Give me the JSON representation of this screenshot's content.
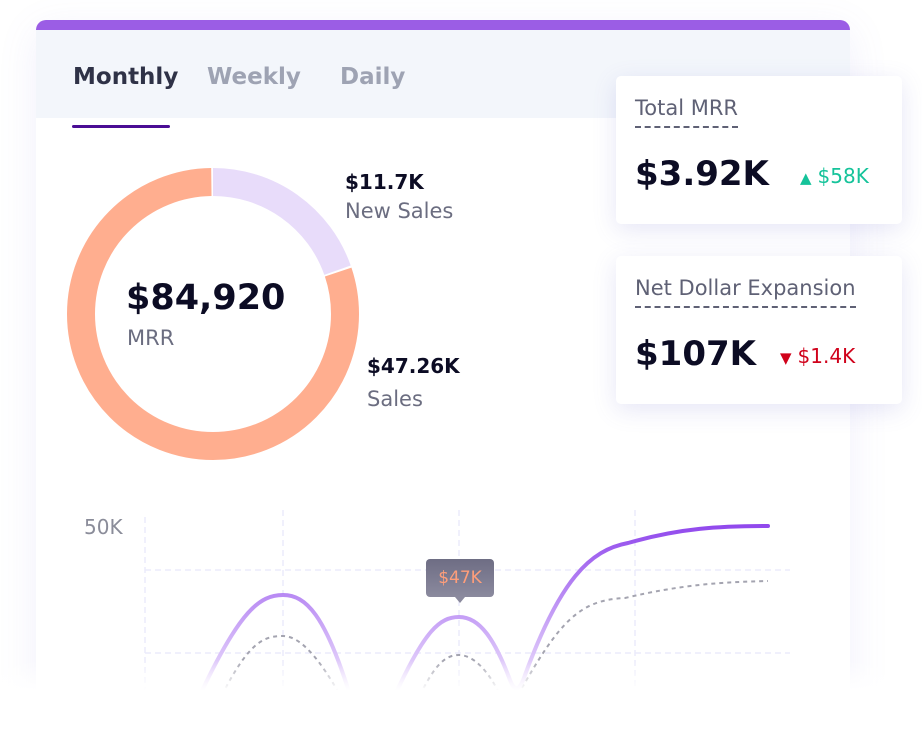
{
  "tabs": [
    {
      "label": "Monthly",
      "active": true
    },
    {
      "label": "Weekly",
      "active": false
    },
    {
      "label": "Daily",
      "active": false
    }
  ],
  "donut": {
    "center_value": "$84,920",
    "center_label": "MRR",
    "segments": [
      {
        "value_label": "$11.7K",
        "label": "New Sales",
        "value": 11.7,
        "color": "#e8dcfa"
      },
      {
        "value_label": "$47.26K",
        "label": "Sales",
        "value": 47.26,
        "color": "#ffae8f"
      }
    ]
  },
  "chart": {
    "y_tick": "50K",
    "tooltip": "$47K",
    "line_color": "#8e44ec",
    "secondary_color": "#a4a4b0"
  },
  "stats": [
    {
      "title": "Total MRR",
      "value": "$3.92K",
      "delta": "$58K",
      "direction": "up",
      "color": "#15c39a"
    },
    {
      "title": "Net Dollar Expansion",
      "value": "$107K",
      "delta": "$1.4K",
      "direction": "down",
      "color": "#d0021b"
    }
  ]
}
